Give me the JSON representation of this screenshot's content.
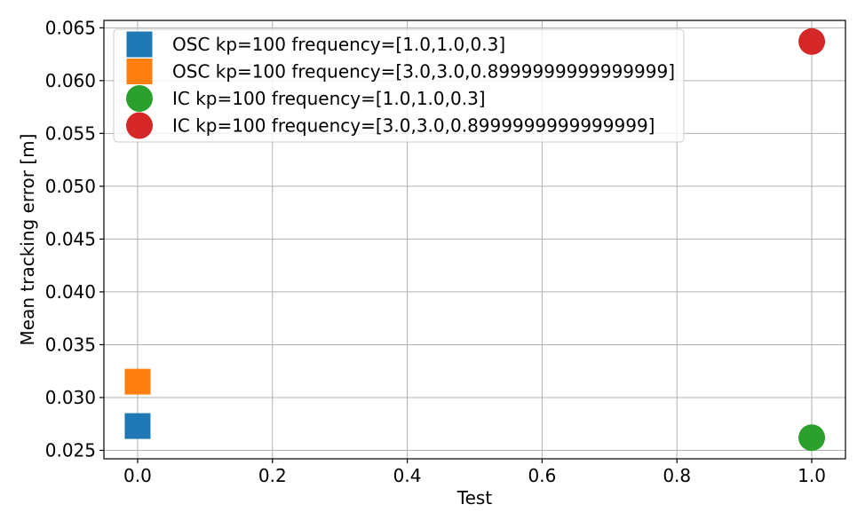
{
  "chart_data": {
    "type": "scatter",
    "xlabel": "Test",
    "ylabel": "Mean tracking error [m]",
    "xlim": [
      -0.05,
      1.05
    ],
    "ylim": [
      0.0242,
      0.0657
    ],
    "xticks": [
      0.0,
      0.2,
      0.4,
      0.6,
      0.8,
      1.0
    ],
    "xtick_labels": [
      "0.0",
      "0.2",
      "0.4",
      "0.6",
      "0.8",
      "1.0"
    ],
    "yticks": [
      0.025,
      0.03,
      0.035,
      0.04,
      0.045,
      0.05,
      0.055,
      0.06,
      0.065
    ],
    "ytick_labels": [
      "0.025",
      "0.030",
      "0.035",
      "0.040",
      "0.045",
      "0.050",
      "0.055",
      "0.060",
      "0.065"
    ],
    "grid": true,
    "legend_position": "top-left",
    "series": [
      {
        "name": "OSC kp=100 frequency=[1.0,1.0,0.3]",
        "marker": "square",
        "color": "#1f77b4",
        "points": [
          {
            "x": 0.0,
            "y": 0.0273
          }
        ]
      },
      {
        "name": "OSC kp=100 frequency=[3.0,3.0,0.8999999999999999]",
        "marker": "square",
        "color": "#ff7f0e",
        "points": [
          {
            "x": 0.0,
            "y": 0.0315
          }
        ]
      },
      {
        "name": "IC kp=100 frequency=[1.0,1.0,0.3]",
        "marker": "circle",
        "color": "#2ca02c",
        "points": [
          {
            "x": 1.0,
            "y": 0.0262
          }
        ]
      },
      {
        "name": "IC kp=100 frequency=[3.0,3.0,0.8999999999999999]",
        "marker": "circle",
        "color": "#d62728",
        "points": [
          {
            "x": 1.0,
            "y": 0.0637
          }
        ]
      }
    ]
  }
}
